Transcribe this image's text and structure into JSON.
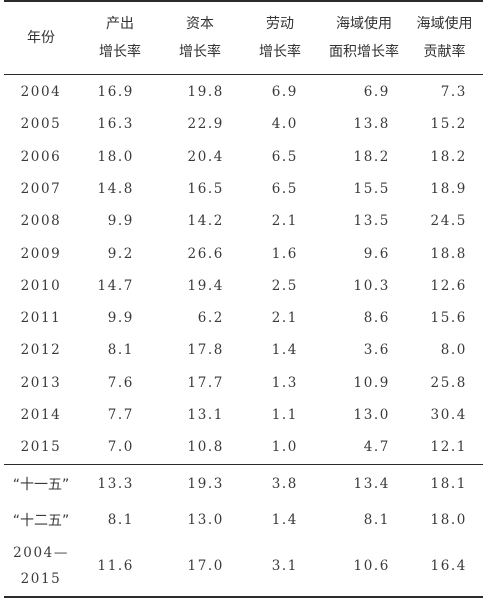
{
  "table": {
    "headers": [
      {
        "line1": "年份",
        "line2": ""
      },
      {
        "line1": "产出",
        "line2": "增长率"
      },
      {
        "line1": "资本",
        "line2": "增长率"
      },
      {
        "line1": "劳动",
        "line2": "增长率"
      },
      {
        "line1": "海域使用",
        "line2": "面积增长率"
      },
      {
        "line1": "海域使用",
        "line2": "贡献率"
      }
    ],
    "rows": [
      {
        "year": "2004",
        "output": "16.9",
        "capital": "19.8",
        "labor": "6.9",
        "area": "6.9",
        "contribution": "7.3"
      },
      {
        "year": "2005",
        "output": "16.3",
        "capital": "22.9",
        "labor": "4.0",
        "area": "13.8",
        "contribution": "15.2"
      },
      {
        "year": "2006",
        "output": "18.0",
        "capital": "20.4",
        "labor": "6.5",
        "area": "18.2",
        "contribution": "18.2"
      },
      {
        "year": "2007",
        "output": "14.8",
        "capital": "16.5",
        "labor": "6.5",
        "area": "15.5",
        "contribution": "18.9"
      },
      {
        "year": "2008",
        "output": "9.9",
        "capital": "14.2",
        "labor": "2.1",
        "area": "13.5",
        "contribution": "24.5"
      },
      {
        "year": "2009",
        "output": "9.2",
        "capital": "26.6",
        "labor": "1.6",
        "area": "9.6",
        "contribution": "18.8"
      },
      {
        "year": "2010",
        "output": "14.7",
        "capital": "19.4",
        "labor": "2.5",
        "area": "10.3",
        "contribution": "12.6"
      },
      {
        "year": "2011",
        "output": "9.9",
        "capital": "6.2",
        "labor": "2.1",
        "area": "8.6",
        "contribution": "15.6"
      },
      {
        "year": "2012",
        "output": "8.1",
        "capital": "17.8",
        "labor": "1.4",
        "area": "3.6",
        "contribution": "8.0"
      },
      {
        "year": "2013",
        "output": "7.6",
        "capital": "17.7",
        "labor": "1.3",
        "area": "10.9",
        "contribution": "25.8"
      },
      {
        "year": "2014",
        "output": "7.7",
        "capital": "13.1",
        "labor": "1.1",
        "area": "13.0",
        "contribution": "30.4"
      },
      {
        "year": "2015",
        "output": "7.0",
        "capital": "10.8",
        "labor": "1.0",
        "area": "4.7",
        "contribution": "12.1"
      }
    ],
    "summary": [
      {
        "period": "“十一五”",
        "output": "13.3",
        "capital": "19.3",
        "labor": "3.8",
        "area": "13.4",
        "contribution": "18.1"
      },
      {
        "period": "“十二五”",
        "output": "8.1",
        "capital": "13.0",
        "labor": "1.4",
        "area": "8.1",
        "contribution": "18.0"
      }
    ],
    "overall": {
      "period_line1": "2004—",
      "period_line2": "2015",
      "output": "11.6",
      "capital": "17.0",
      "labor": "3.1",
      "area": "10.6",
      "contribution": "16.4"
    }
  }
}
